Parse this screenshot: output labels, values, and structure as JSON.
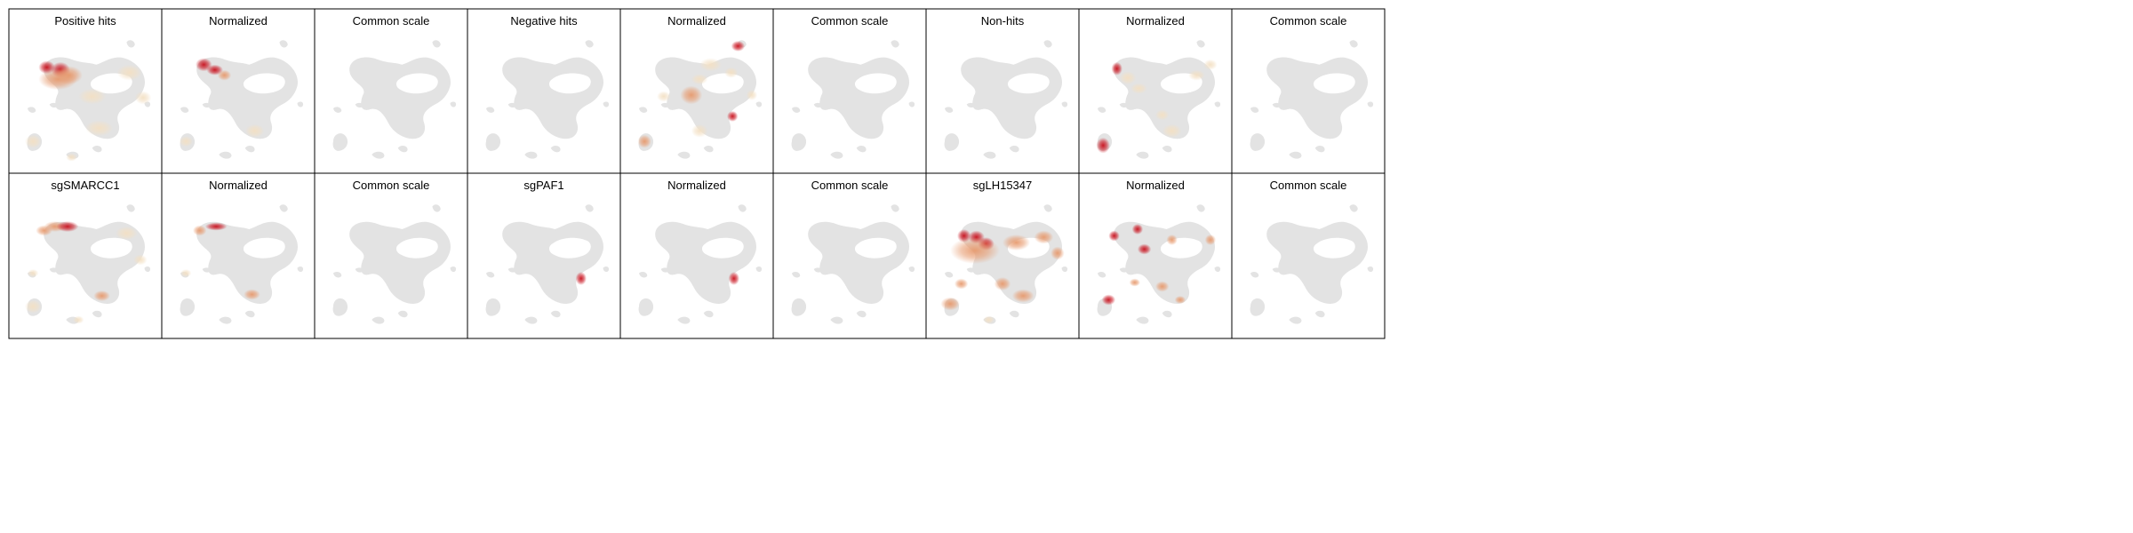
{
  "colors": {
    "background_cells": "#e3e3e3",
    "density_low": "#f3e0c4",
    "density_mid": "#e79a6e",
    "density_high": "#c8101c",
    "frame": "#000000",
    "title_text": "#000000"
  },
  "chart_data": {
    "type": "heatmap",
    "description_type": "umap-density-panel-grid",
    "grid": {
      "rows": 2,
      "cols": 9
    },
    "panels": [
      {
        "title": "Positive hits",
        "hotspots": [
          {
            "x": 0.22,
            "y": 0.24,
            "w": 0.06,
            "h": 0.05,
            "v": 1.0
          },
          {
            "x": 0.32,
            "y": 0.26,
            "w": 0.07,
            "h": 0.06,
            "v": 0.9
          },
          {
            "x": 0.38,
            "y": 0.3,
            "w": 0.1,
            "h": 0.07,
            "v": 0.55
          },
          {
            "x": 0.3,
            "y": 0.33,
            "w": 0.14,
            "h": 0.08,
            "v": 0.45
          },
          {
            "x": 0.55,
            "y": 0.46,
            "w": 0.1,
            "h": 0.06,
            "v": 0.3
          },
          {
            "x": 0.82,
            "y": 0.28,
            "w": 0.09,
            "h": 0.06,
            "v": 0.3
          },
          {
            "x": 0.92,
            "y": 0.47,
            "w": 0.06,
            "h": 0.05,
            "v": 0.35
          },
          {
            "x": 0.6,
            "y": 0.7,
            "w": 0.1,
            "h": 0.06,
            "v": 0.4
          },
          {
            "x": 0.12,
            "y": 0.8,
            "w": 0.06,
            "h": 0.05,
            "v": 0.4
          },
          {
            "x": 0.4,
            "y": 0.92,
            "w": 0.04,
            "h": 0.03,
            "v": 0.35
          }
        ]
      },
      {
        "title": "Normalized",
        "hotspots": [
          {
            "x": 0.25,
            "y": 0.22,
            "w": 0.06,
            "h": 0.05,
            "v": 1.0
          },
          {
            "x": 0.33,
            "y": 0.26,
            "w": 0.06,
            "h": 0.04,
            "v": 0.8
          },
          {
            "x": 0.4,
            "y": 0.3,
            "w": 0.05,
            "h": 0.04,
            "v": 0.6
          },
          {
            "x": 0.62,
            "y": 0.72,
            "w": 0.07,
            "h": 0.05,
            "v": 0.4
          },
          {
            "x": 0.12,
            "y": 0.8,
            "w": 0.05,
            "h": 0.04,
            "v": 0.4
          }
        ]
      },
      {
        "title": "Common scale",
        "hotspots": []
      },
      {
        "title": "Negative hits",
        "hotspots": []
      },
      {
        "title": "Normalized",
        "hotspots": [
          {
            "x": 0.8,
            "y": 0.08,
            "w": 0.05,
            "h": 0.04,
            "v": 1.0
          },
          {
            "x": 0.76,
            "y": 0.61,
            "w": 0.04,
            "h": 0.04,
            "v": 1.0
          },
          {
            "x": 0.46,
            "y": 0.45,
            "w": 0.08,
            "h": 0.07,
            "v": 0.5
          },
          {
            "x": 0.6,
            "y": 0.22,
            "w": 0.08,
            "h": 0.05,
            "v": 0.35
          },
          {
            "x": 0.52,
            "y": 0.33,
            "w": 0.06,
            "h": 0.04,
            "v": 0.3
          },
          {
            "x": 0.75,
            "y": 0.28,
            "w": 0.05,
            "h": 0.04,
            "v": 0.35
          },
          {
            "x": 0.9,
            "y": 0.45,
            "w": 0.04,
            "h": 0.04,
            "v": 0.25
          },
          {
            "x": 0.12,
            "y": 0.8,
            "w": 0.05,
            "h": 0.05,
            "v": 0.45
          },
          {
            "x": 0.26,
            "y": 0.46,
            "w": 0.05,
            "h": 0.04,
            "v": 0.3
          },
          {
            "x": 0.52,
            "y": 0.72,
            "w": 0.06,
            "h": 0.05,
            "v": 0.35
          }
        ]
      },
      {
        "title": "Common scale",
        "hotspots": []
      },
      {
        "title": "Non-hits",
        "hotspots": []
      },
      {
        "title": "Normalized",
        "hotspots": [
          {
            "x": 0.22,
            "y": 0.25,
            "w": 0.04,
            "h": 0.05,
            "v": 1.0
          },
          {
            "x": 0.12,
            "y": 0.83,
            "w": 0.05,
            "h": 0.06,
            "v": 1.0
          },
          {
            "x": 0.3,
            "y": 0.32,
            "w": 0.06,
            "h": 0.05,
            "v": 0.35
          },
          {
            "x": 0.38,
            "y": 0.4,
            "w": 0.06,
            "h": 0.04,
            "v": 0.3
          },
          {
            "x": 0.55,
            "y": 0.6,
            "w": 0.05,
            "h": 0.04,
            "v": 0.3
          },
          {
            "x": 0.62,
            "y": 0.72,
            "w": 0.07,
            "h": 0.05,
            "v": 0.35
          },
          {
            "x": 0.8,
            "y": 0.3,
            "w": 0.06,
            "h": 0.04,
            "v": 0.3
          },
          {
            "x": 0.9,
            "y": 0.22,
            "w": 0.05,
            "h": 0.04,
            "v": 0.3
          }
        ]
      },
      {
        "title": "Common scale",
        "hotspots": []
      },
      {
        "title": "sgSMARCC1",
        "hotspots": [
          {
            "x": 0.28,
            "y": 0.2,
            "w": 0.08,
            "h": 0.04,
            "v": 0.7
          },
          {
            "x": 0.37,
            "y": 0.2,
            "w": 0.08,
            "h": 0.04,
            "v": 1.0
          },
          {
            "x": 0.2,
            "y": 0.23,
            "w": 0.06,
            "h": 0.04,
            "v": 0.5
          },
          {
            "x": 0.62,
            "y": 0.72,
            "w": 0.06,
            "h": 0.04,
            "v": 0.55
          },
          {
            "x": 0.12,
            "y": 0.8,
            "w": 0.06,
            "h": 0.05,
            "v": 0.35
          },
          {
            "x": 0.12,
            "y": 0.55,
            "w": 0.04,
            "h": 0.03,
            "v": 0.3
          },
          {
            "x": 0.8,
            "y": 0.25,
            "w": 0.08,
            "h": 0.05,
            "v": 0.25
          },
          {
            "x": 0.9,
            "y": 0.45,
            "w": 0.05,
            "h": 0.04,
            "v": 0.25
          },
          {
            "x": 0.45,
            "y": 0.9,
            "w": 0.04,
            "h": 0.03,
            "v": 0.25
          }
        ]
      },
      {
        "title": "Normalized",
        "hotspots": [
          {
            "x": 0.34,
            "y": 0.2,
            "w": 0.08,
            "h": 0.03,
            "v": 1.0
          },
          {
            "x": 0.22,
            "y": 0.23,
            "w": 0.05,
            "h": 0.04,
            "v": 0.5
          },
          {
            "x": 0.6,
            "y": 0.71,
            "w": 0.06,
            "h": 0.04,
            "v": 0.6
          },
          {
            "x": 0.12,
            "y": 0.55,
            "w": 0.04,
            "h": 0.03,
            "v": 0.35
          }
        ]
      },
      {
        "title": "Common scale",
        "hotspots": []
      },
      {
        "title": "sgPAF1",
        "hotspots": [
          {
            "x": 0.77,
            "y": 0.59,
            "w": 0.04,
            "h": 0.05,
            "v": 1.0
          }
        ]
      },
      {
        "title": "Normalized",
        "hotspots": [
          {
            "x": 0.77,
            "y": 0.59,
            "w": 0.04,
            "h": 0.05,
            "v": 1.0
          }
        ]
      },
      {
        "title": "Common scale",
        "hotspots": []
      },
      {
        "title": "sgLH15347",
        "hotspots": [
          {
            "x": 0.22,
            "y": 0.27,
            "w": 0.05,
            "h": 0.05,
            "v": 0.9
          },
          {
            "x": 0.31,
            "y": 0.28,
            "w": 0.06,
            "h": 0.05,
            "v": 0.8
          },
          {
            "x": 0.38,
            "y": 0.33,
            "w": 0.06,
            "h": 0.05,
            "v": 0.8
          },
          {
            "x": 0.3,
            "y": 0.38,
            "w": 0.18,
            "h": 0.1,
            "v": 0.45
          },
          {
            "x": 0.6,
            "y": 0.32,
            "w": 0.1,
            "h": 0.06,
            "v": 0.45
          },
          {
            "x": 0.8,
            "y": 0.28,
            "w": 0.07,
            "h": 0.05,
            "v": 0.55
          },
          {
            "x": 0.9,
            "y": 0.4,
            "w": 0.05,
            "h": 0.05,
            "v": 0.55
          },
          {
            "x": 0.2,
            "y": 0.63,
            "w": 0.05,
            "h": 0.04,
            "v": 0.45
          },
          {
            "x": 0.5,
            "y": 0.63,
            "w": 0.06,
            "h": 0.05,
            "v": 0.45
          },
          {
            "x": 0.65,
            "y": 0.72,
            "w": 0.08,
            "h": 0.05,
            "v": 0.45
          },
          {
            "x": 0.12,
            "y": 0.78,
            "w": 0.07,
            "h": 0.05,
            "v": 0.45
          },
          {
            "x": 0.4,
            "y": 0.9,
            "w": 0.04,
            "h": 0.03,
            "v": 0.35
          }
        ]
      },
      {
        "title": "Normalized",
        "hotspots": [
          {
            "x": 0.2,
            "y": 0.27,
            "w": 0.04,
            "h": 0.04,
            "v": 0.8
          },
          {
            "x": 0.37,
            "y": 0.22,
            "w": 0.04,
            "h": 0.04,
            "v": 0.9
          },
          {
            "x": 0.42,
            "y": 0.37,
            "w": 0.05,
            "h": 0.04,
            "v": 1.0
          },
          {
            "x": 0.62,
            "y": 0.3,
            "w": 0.04,
            "h": 0.04,
            "v": 0.6
          },
          {
            "x": 0.9,
            "y": 0.3,
            "w": 0.04,
            "h": 0.04,
            "v": 0.6
          },
          {
            "x": 0.16,
            "y": 0.75,
            "w": 0.05,
            "h": 0.04,
            "v": 0.8
          },
          {
            "x": 0.35,
            "y": 0.62,
            "w": 0.04,
            "h": 0.03,
            "v": 0.55
          },
          {
            "x": 0.55,
            "y": 0.65,
            "w": 0.05,
            "h": 0.04,
            "v": 0.55
          },
          {
            "x": 0.68,
            "y": 0.75,
            "w": 0.04,
            "h": 0.03,
            "v": 0.55
          }
        ]
      },
      {
        "title": "Common scale",
        "hotspots": []
      }
    ]
  }
}
